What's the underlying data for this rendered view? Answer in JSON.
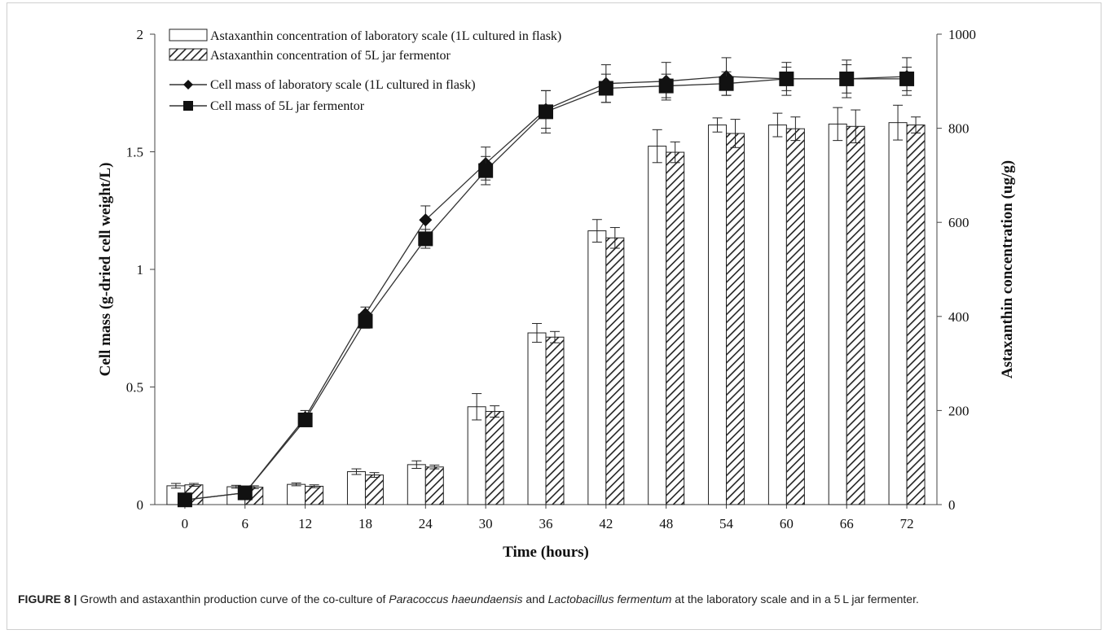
{
  "chart_data": {
    "type": "bar",
    "xlabel": "Time (hours)",
    "ylabel": "Cell mass (g-dried cell weight/L)",
    "y2label": "Astaxanthin concentration (ug/g)",
    "categories": [
      "0",
      "6",
      "12",
      "18",
      "24",
      "30",
      "36",
      "42",
      "48",
      "54",
      "60",
      "66",
      "72"
    ],
    "ylim": [
      0,
      2
    ],
    "yticks": [
      "0",
      "0.5",
      "1",
      "1.5",
      "2"
    ],
    "y2lim": [
      0,
      1000
    ],
    "y2ticks": [
      "0",
      "200",
      "400",
      "600",
      "800",
      "1000"
    ],
    "grid": false,
    "legend_position": "top-left",
    "bar_series": [
      {
        "name": "Astaxanthin concentration of laboratory scale (1L cultured in flask)",
        "axis": "right",
        "style": "open",
        "values": [
          40,
          38,
          43,
          70,
          85,
          208,
          365,
          582,
          762,
          807,
          807,
          809,
          812
        ],
        "errors": [
          5,
          3,
          3,
          6,
          8,
          28,
          20,
          24,
          35,
          15,
          25,
          35,
          37
        ]
      },
      {
        "name": "Astaxanthin concentration of 5L jar fermentor",
        "axis": "right",
        "style": "hatched",
        "values": [
          42,
          37,
          39,
          63,
          80,
          198,
          356,
          567,
          749,
          789,
          799,
          804,
          807
        ],
        "errors": [
          3,
          3,
          3,
          5,
          4,
          12,
          12,
          22,
          22,
          30,
          25,
          35,
          17
        ]
      }
    ],
    "line_series": [
      {
        "name": "Cell mass of laboratory scale (1L cultured in flask)",
        "axis": "left",
        "marker": "diamond",
        "values": [
          0.02,
          0.05,
          0.37,
          0.81,
          1.21,
          1.45,
          1.68,
          1.79,
          1.8,
          1.82,
          1.81,
          1.81,
          1.82
        ],
        "errors": [
          0.01,
          0.01,
          0.03,
          0.03,
          0.06,
          0.07,
          0.08,
          0.08,
          0.08,
          0.08,
          0.07,
          0.08,
          0.08
        ]
      },
      {
        "name": "Cell mass of 5L jar fermentor",
        "axis": "left",
        "marker": "square",
        "values": [
          0.02,
          0.05,
          0.36,
          0.78,
          1.13,
          1.42,
          1.67,
          1.77,
          1.78,
          1.79,
          1.81,
          1.81,
          1.81
        ],
        "errors": [
          0.01,
          0.01,
          0.02,
          0.03,
          0.04,
          0.06,
          0.09,
          0.06,
          0.05,
          0.05,
          0.05,
          0.06,
          0.05
        ]
      }
    ]
  },
  "caption": {
    "label": "FIGURE 8 |",
    "text_1": " Growth and astaxanthin production curve of the co-culture of ",
    "species_1": "Paracoccus haeundaensis",
    "text_2": " and ",
    "species_2": "Lactobacillus fermentum",
    "text_3": " at the laboratory scale and in a 5 L jar fermenter."
  }
}
